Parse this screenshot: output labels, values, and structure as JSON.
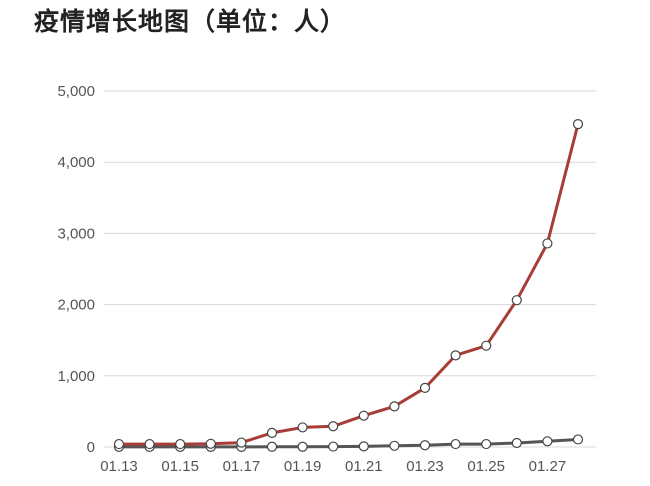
{
  "title": "疫情增长地图（单位：人）",
  "colors": {
    "confirmed": "#a83d37",
    "deaths": "#555555",
    "grid": "#d9d9d9",
    "text": "#555555"
  },
  "chart_data": {
    "type": "line",
    "title": "疫情增长地图（单位：人）",
    "x": [
      "01.13",
      "01.14",
      "01.15",
      "01.16",
      "01.17",
      "01.18",
      "01.19",
      "01.20",
      "01.21",
      "01.22",
      "01.23",
      "01.24",
      "01.25",
      "01.26",
      "01.27",
      "01.28"
    ],
    "x_tick_labels": [
      "01.13",
      "01.15",
      "01.17",
      "01.19",
      "01.21",
      "01.23",
      "01.25",
      "01.27"
    ],
    "y_tick_labels": [
      "0",
      "1,000",
      "2,000",
      "3,000",
      "4,000",
      "5,000"
    ],
    "ylim": [
      0,
      5000
    ],
    "grid": true,
    "legend": "none",
    "series": [
      {
        "values": [
          41,
          41,
          41,
          45,
          62,
          198,
          275,
          291,
          440,
          571,
          830,
          1287,
          1423,
          2062,
          2859,
          4535
        ]
      },
      {
        "values": [
          1,
          1,
          2,
          2,
          2,
          3,
          4,
          6,
          9,
          17,
          25,
          41,
          41,
          56,
          80,
          106
        ]
      }
    ]
  }
}
